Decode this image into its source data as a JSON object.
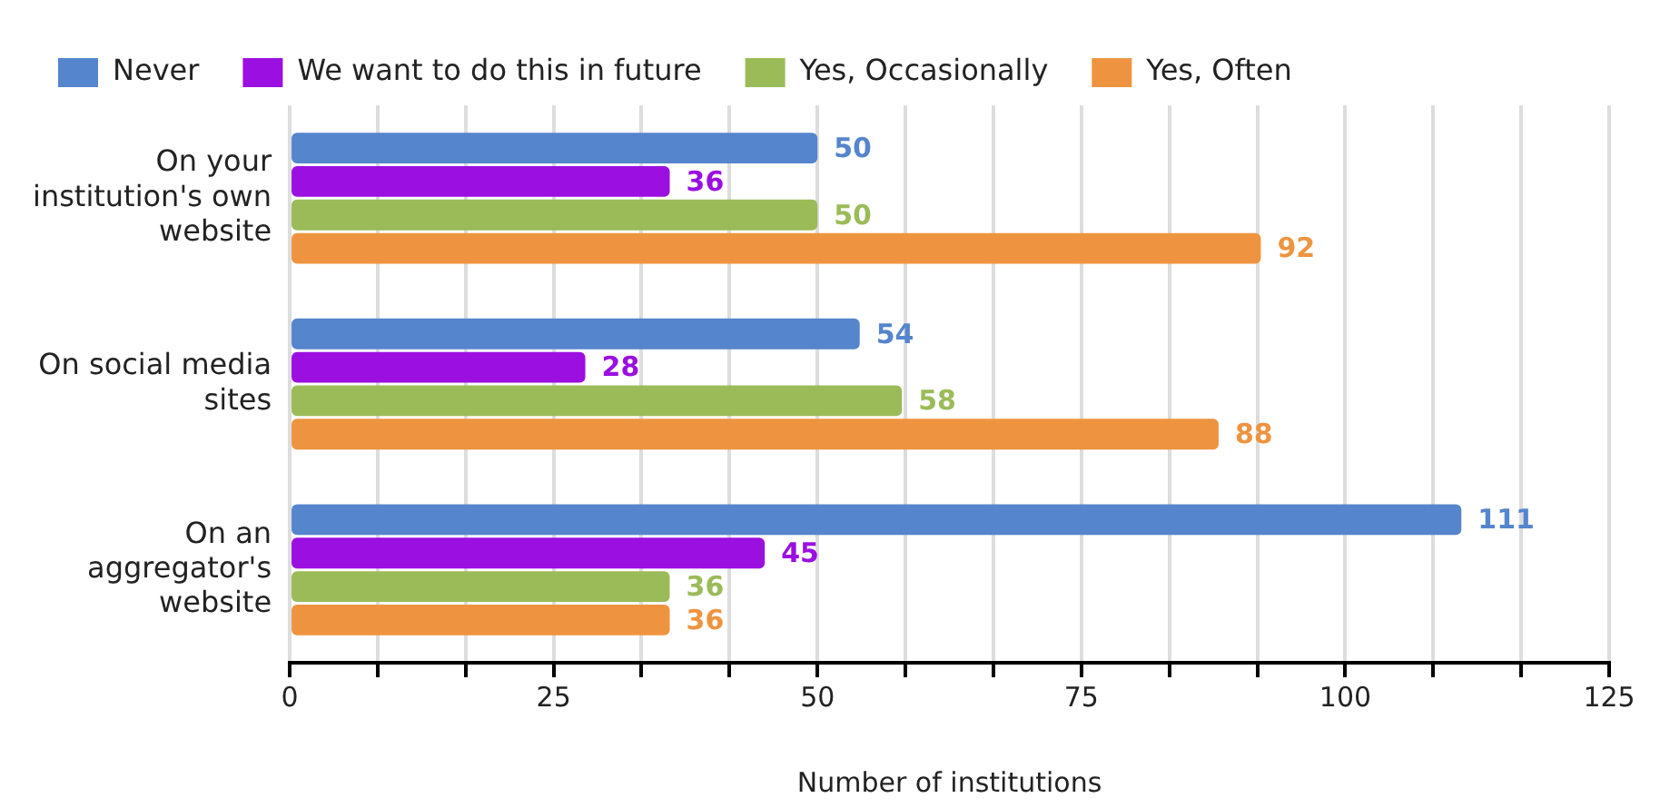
{
  "chart_data": {
    "type": "bar",
    "orientation": "horizontal",
    "xlabel": "Number of institutions",
    "categories": [
      "On your institution's own website",
      "On social media sites",
      "On an aggregator's website"
    ],
    "series": [
      {
        "name": "Never",
        "color": "#5585cc",
        "values": [
          50,
          54,
          111
        ]
      },
      {
        "name": "We want to do this in future",
        "color": "#9b0fe0",
        "values": [
          36,
          28,
          45
        ]
      },
      {
        "name": "Yes, Occasionally",
        "color": "#9bbb59",
        "values": [
          50,
          58,
          36
        ]
      },
      {
        "name": "Yes, Often",
        "color": "#ee9440",
        "values": [
          92,
          88,
          36
        ]
      }
    ],
    "xlim": [
      0,
      125
    ],
    "xticks": [
      0,
      {
        "value": 8.33,
        "label": null
      },
      {
        "value": 16.67,
        "label": null
      },
      25,
      {
        "value": 33.33,
        "label": null
      },
      {
        "value": 41.67,
        "label": null
      },
      50,
      {
        "value": 58.33,
        "label": null
      },
      {
        "value": 66.67,
        "label": null
      },
      75,
      {
        "value": 83.33,
        "label": null
      },
      {
        "value": 91.67,
        "label": null
      },
      100,
      {
        "value": 108.33,
        "label": null
      },
      {
        "value": 116.67,
        "label": null
      },
      125
    ],
    "grid": "x",
    "legend": "top",
    "data_labels": true
  }
}
